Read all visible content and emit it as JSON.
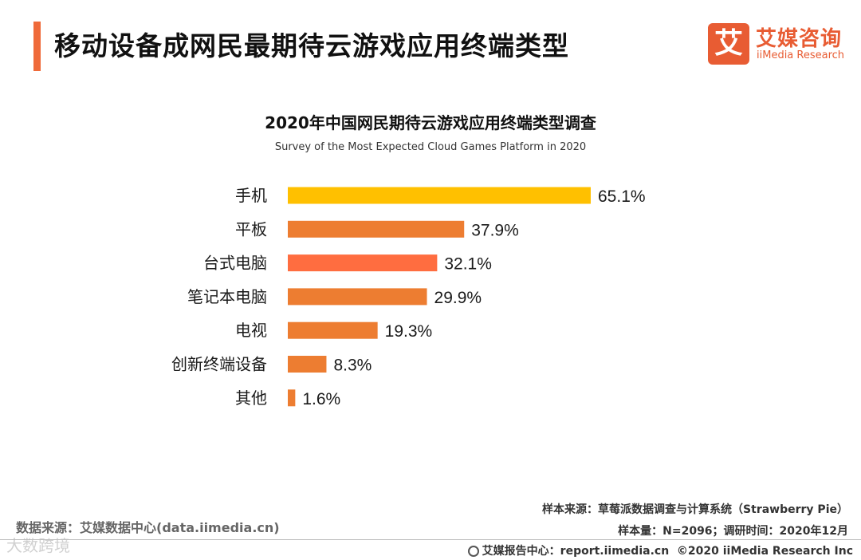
{
  "header": {
    "title": "移动设备成网民最期待云游戏应用终端类型"
  },
  "logo": {
    "mark": "艾",
    "name_cn": "艾媒咨询",
    "name_en": "iiMedia Research"
  },
  "colors": {
    "accent": "#ef6a3a",
    "highlight_bar": "#ffc000",
    "default_bar": "#ed7d31",
    "alt_bar": "#ff6d40"
  },
  "chart_data": {
    "type": "bar",
    "orientation": "horizontal",
    "title": "2020年中国网民期待云游戏应用终端类型调查",
    "subtitle": "Survey of the Most Expected Cloud Games Platform in 2020",
    "categories": [
      "手机",
      "平板",
      "台式电脑",
      "笔记本电脑",
      "电视",
      "创新终端设备",
      "其他"
    ],
    "values": [
      65.1,
      37.9,
      32.1,
      29.9,
      19.3,
      8.3,
      1.6
    ],
    "value_labels": [
      "65.1%",
      "37.9%",
      "32.1%",
      "29.9%",
      "19.3%",
      "8.3%",
      "1.6%"
    ],
    "bar_colors": [
      "#ffc000",
      "#ed7d31",
      "#ff6d40",
      "#ed7d31",
      "#ed7d31",
      "#ed7d31",
      "#ed7d31"
    ],
    "unit": "%",
    "xlim": [
      0,
      100
    ],
    "grid": false
  },
  "footer": {
    "source": "数据来源：艾媒数据中心(data.iimedia.cn)",
    "sample_source": "样本来源：草莓派数据调查与计算系统（Strawberry Pie）",
    "sample_info": "样本量：N=2096；调研时间：2020年12月",
    "report_center": "艾媒报告中心：report.iimedia.cn",
    "copyright": "©2020  iiMedia Research  Inc",
    "watermark": "大数跨境"
  }
}
